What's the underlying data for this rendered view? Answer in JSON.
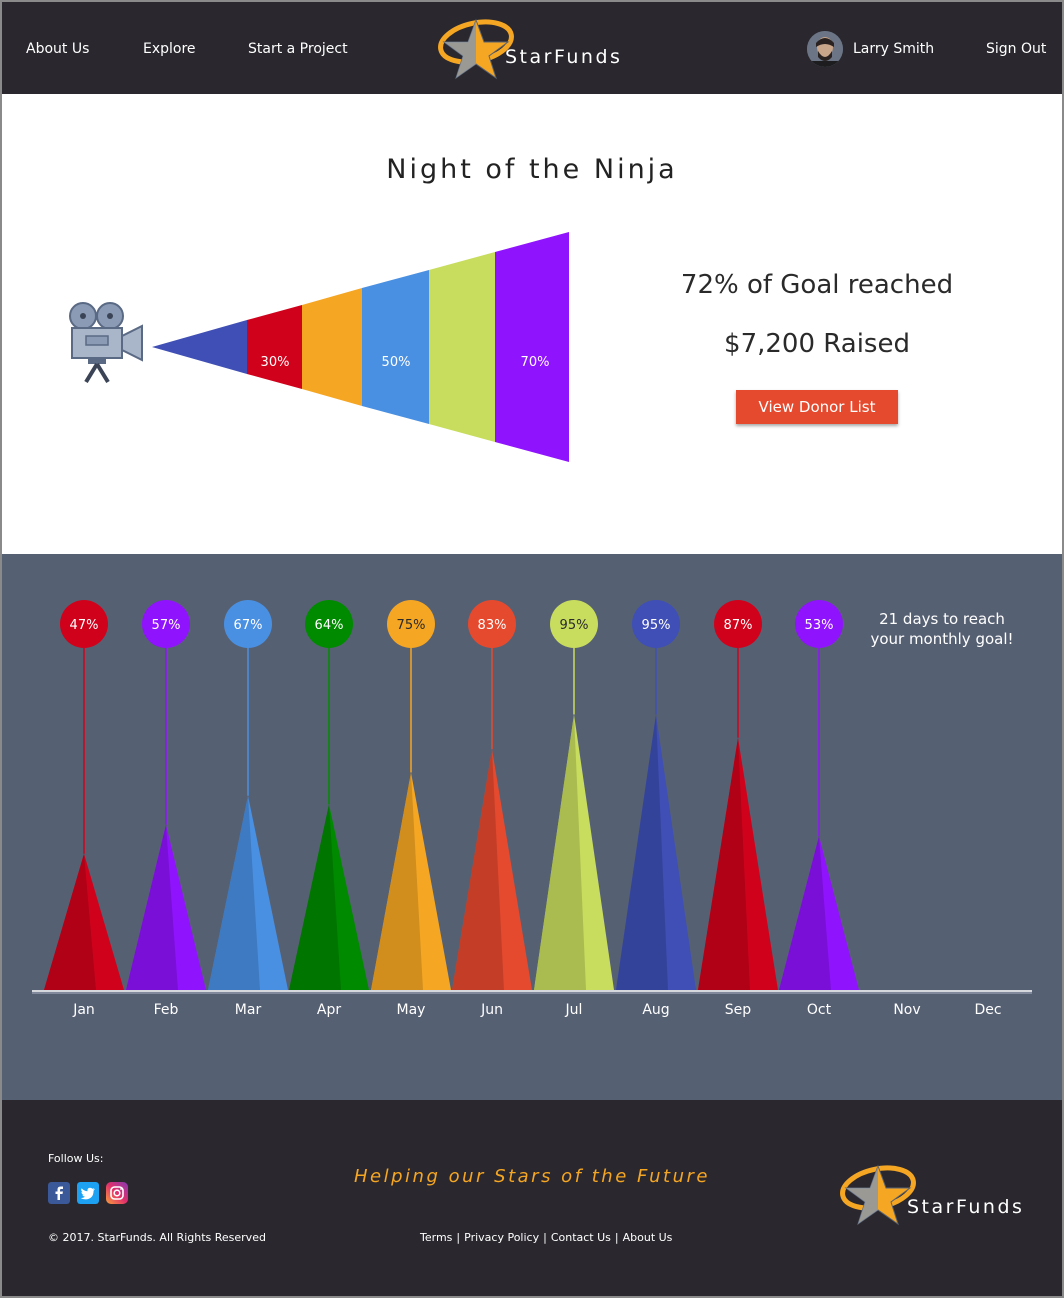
{
  "header": {
    "nav": [
      "About Us",
      "Explore",
      "Start a Project"
    ],
    "brand": "StarFunds",
    "user_name": "Larry Smith",
    "sign_out": "Sign Out"
  },
  "project": {
    "title": "Night of the Ninja",
    "goal_text": "72% of Goal reached",
    "raised_text": "$7,200 Raised",
    "donor_button": "View Donor List",
    "funnel_labels": [
      "30%",
      "50%",
      "70%"
    ],
    "funnel_colors": [
      "#3f4fb5",
      "#d0021b",
      "#f5a623",
      "#4a90e2",
      "#c8dc5e",
      "#9013fe"
    ]
  },
  "chart_data": {
    "type": "bar",
    "categories": [
      "Jan",
      "Feb",
      "Mar",
      "Apr",
      "May",
      "Jun",
      "Jul",
      "Aug",
      "Sep",
      "Oct",
      "Nov",
      "Dec"
    ],
    "values": [
      47,
      57,
      67,
      64,
      75,
      83,
      95,
      95,
      87,
      53,
      null,
      null
    ],
    "labels": [
      "47%",
      "57%",
      "67%",
      "64%",
      "75%",
      "83%",
      "95%",
      "95%",
      "87%",
      "53%"
    ],
    "colors": [
      "#d0021b",
      "#9013fe",
      "#4a90e2",
      "#008a00",
      "#f5a623",
      "#e64a2e",
      "#c8dc5e",
      "#3f4fb5",
      "#d0021b",
      "#9013fe"
    ],
    "ylim": [
      0,
      100
    ]
  },
  "days_text_1": "21 days to reach",
  "days_text_2": "your monthly goal!",
  "footer": {
    "follow": "Follow Us:",
    "copyright": "© 2017. StarFunds. All Rights Reserved",
    "tagline": "Helping our Stars of the Future",
    "links": [
      "Terms",
      "Privacy Policy",
      "Contact Us",
      "About Us"
    ],
    "brand": "StarFunds"
  }
}
